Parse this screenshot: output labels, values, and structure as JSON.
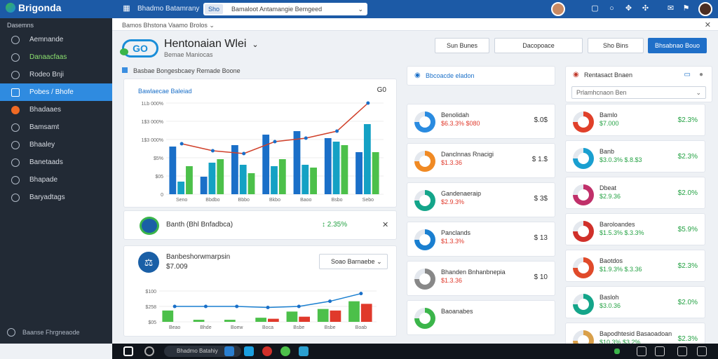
{
  "app": {
    "name": "Brigonda",
    "window_title": "Bhadmo Batamrany",
    "search_tag": "Sho",
    "search_text": "Bamaloot Antamangie Bemgeed"
  },
  "breadcrumb": "Bamos Bhstona   Vaamo   Brolos",
  "sidebar": {
    "header": "Dasemns",
    "items": [
      {
        "label": "Aemnande",
        "icon": "gear-icon"
      },
      {
        "label": "Danaacfaas",
        "icon": "chart-icon"
      },
      {
        "label": "Rodeo Bnji",
        "icon": "clock-icon"
      },
      {
        "label": "Pobes / Bhofe",
        "icon": "grid-icon"
      },
      {
        "label": "Bhadaaes",
        "icon": "bell-icon"
      },
      {
        "label": "Bamsamt",
        "icon": "users-icon"
      },
      {
        "label": "Bhaaley",
        "icon": "home-icon"
      },
      {
        "label": "Banetaads",
        "icon": "chat-icon"
      },
      {
        "label": "Bhapade",
        "icon": "archive-icon"
      },
      {
        "label": "Baryadtags",
        "icon": "help-icon"
      }
    ],
    "footer": "Baanse Fhrgneaode"
  },
  "header": {
    "logo_text": "GO",
    "title": "Hentonaian Wlei",
    "subtitle": "Bemae Maniocas",
    "buttons": [
      "Sun Bunes",
      "Dacopoace",
      "Sho Bins",
      "Bhsabnao Bouo"
    ]
  },
  "left": {
    "section_title": "Basbae Bongesbcaey Remade Boone",
    "chart1": {
      "title": "Bawlaecae Baleiad",
      "badge": "G0",
      "yticks": [
        "1Lb 000%",
        "1$3 000%",
        "1$3 000%",
        "$5%",
        "$05",
        "0"
      ],
      "xticks": [
        "Seno",
        "Bbdbo",
        "Bbbo",
        "Bkbo",
        "Baoo",
        "Bsbo",
        "Sebo"
      ]
    },
    "stat1": {
      "label": "Banth (Bhl Bnfadbca)",
      "pct": "↕ 2.35%"
    },
    "stat2": {
      "label": "Banbeshorwmarpsin",
      "value": "$7.009",
      "select": "Soao Barnaebe"
    },
    "chart2": {
      "yticks": [
        "$100",
        "$258",
        "$05"
      ],
      "xticks": [
        "Beao",
        "Bhde",
        "Boew",
        "Boca",
        "Bsbe",
        "Bsbe",
        "Boab"
      ]
    }
  },
  "mid": {
    "title": "Bbcoacde eladon",
    "cards": [
      {
        "name": "Benolidah",
        "val": "$6.3.3% $080",
        "amt": "$.0$",
        "color": "#2a8be0"
      },
      {
        "name": "Danclnnas Rnacigi",
        "val": "$1.3.36",
        "amt": "$ 1.$",
        "color": "#f08a24"
      },
      {
        "name": "Gandenaeraip",
        "val": "$2.9.3%",
        "amt": "$ 3$",
        "color": "#14a58a"
      },
      {
        "name": "Panclands",
        "val": "$1.3.3%",
        "amt": "$ 13",
        "color": "#1a7fd0"
      },
      {
        "name": "Bhanden Bnhanbnepia",
        "val": "$1.3.36",
        "amt": "$ 10",
        "color": "#888"
      },
      {
        "name": "Baoanabes",
        "val": "",
        "amt": "",
        "color": "#3bb54a"
      }
    ]
  },
  "right": {
    "title": "Rentasact Bnaen",
    "search_placeholder": "Prlamhcnaon Ben",
    "cards": [
      {
        "name": "Bamlo",
        "val": "$7.000",
        "amt": "$2.3%",
        "color": "#e0402a"
      },
      {
        "name": "Banb",
        "val": "$3.0.3% $.8.$3",
        "amt": "$2.3%",
        "color": "#1a9fd0"
      },
      {
        "name": "Dbeat",
        "val": "$2.9.36",
        "amt": "$2.0%",
        "color": "#c0306a"
      },
      {
        "name": "Baroloandes",
        "val": "$1.5.3% $.3.3%",
        "amt": "$5.9%",
        "color": "#d0302a"
      },
      {
        "name": "Baotdos",
        "val": "$1.9.3% $.3.36",
        "amt": "$2.3%",
        "color": "#e04a2a"
      },
      {
        "name": "Basloh",
        "val": "$3.0.36",
        "amt": "$2.0%",
        "color": "#14a58a"
      },
      {
        "name": "Bapodhtesid Basaoadoan",
        "val": "$10.3% $3.2%",
        "amt": "$2.3%",
        "color": "#d9a04a"
      }
    ]
  },
  "taskbar": {
    "search": "Bhadmo Batahiy"
  },
  "chart_data": [
    {
      "type": "bar",
      "categories": [
        "Seno",
        "Bbdbo",
        "Bbbo",
        "Bkbo",
        "Baoo",
        "Bsbo",
        "Sebo"
      ],
      "series": [
        {
          "values": [
            68,
            25,
            70,
            85,
            90,
            80,
            60
          ]
        },
        {
          "values": [
            18,
            45,
            42,
            40,
            42,
            75,
            100
          ]
        },
        {
          "values": [
            40,
            50,
            30,
            50,
            38,
            70,
            60
          ]
        }
      ],
      "line": [
        72,
        62,
        58,
        75,
        80,
        90,
        130
      ],
      "ylim": [
        0,
        130
      ]
    },
    {
      "type": "bar",
      "categories": [
        "Beao",
        "Bhde",
        "Boew",
        "Boca",
        "Bsbe",
        "Bsbe",
        "Boab"
      ],
      "series": [
        {
          "values": [
            22,
            4,
            4,
            8,
            20,
            25,
            40
          ]
        },
        {
          "values": [
            0,
            0,
            0,
            6,
            10,
            22,
            35
          ]
        }
      ],
      "line": [
        30,
        30,
        30,
        28,
        30,
        40,
        55
      ],
      "ylim": [
        0,
        60
      ]
    }
  ],
  "colors": {
    "accent": "#1f6fc8",
    "sidebar": "#222a35",
    "active": "#2f8be0",
    "green": "#4cc04a",
    "blue": "#1a7fd0",
    "red": "#e0392b",
    "teal": "#14a1c4"
  }
}
